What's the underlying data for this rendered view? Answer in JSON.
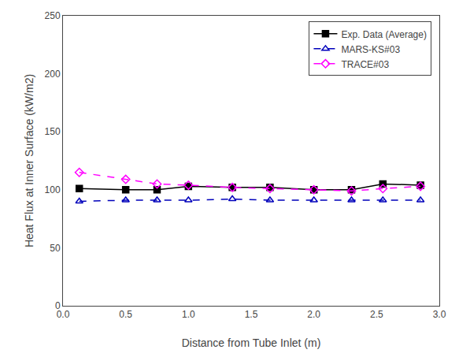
{
  "chart_data": {
    "type": "line",
    "x": [
      0.13,
      0.5,
      0.75,
      1.0,
      1.35,
      1.65,
      2.0,
      2.3,
      2.55,
      2.85
    ],
    "series": [
      {
        "name": "Exp. Data (Average)",
        "color": "#000000",
        "marker": "square",
        "line_style": "solid",
        "values": [
          101,
          100,
          100,
          103,
          102,
          102,
          100,
          100,
          105,
          104
        ]
      },
      {
        "name": "MARS-KS#03",
        "color": "#0000bb",
        "marker": "triangle-up-open",
        "line_style": "dash",
        "values": [
          90,
          91,
          91,
          91,
          92,
          91,
          91,
          91,
          91,
          91
        ]
      },
      {
        "name": "TRACE#03",
        "color": "#ff00ff",
        "marker": "diamond-open",
        "line_style": "dash",
        "values": [
          115,
          109,
          105,
          104,
          102,
          101,
          100,
          99,
          101,
          103
        ]
      }
    ],
    "xlabel": "Distance from Tube Inlet (m)",
    "ylabel": "Heat Flux at Inner Surface (kW/m2)",
    "xlim": [
      0.0,
      3.0
    ],
    "ylim": [
      0,
      250
    ],
    "xticks": [
      {
        "value": 0.0,
        "label": "0.0"
      },
      0.5,
      {
        "value": 1.0,
        "label": "1.0"
      },
      1.5,
      {
        "value": 2.0,
        "label": "2.0"
      },
      2.5,
      {
        "value": 3.0,
        "label": "3.0"
      }
    ],
    "yticks": [
      0,
      50,
      100,
      150,
      200,
      250
    ],
    "grid": false,
    "legend": "upper right"
  }
}
